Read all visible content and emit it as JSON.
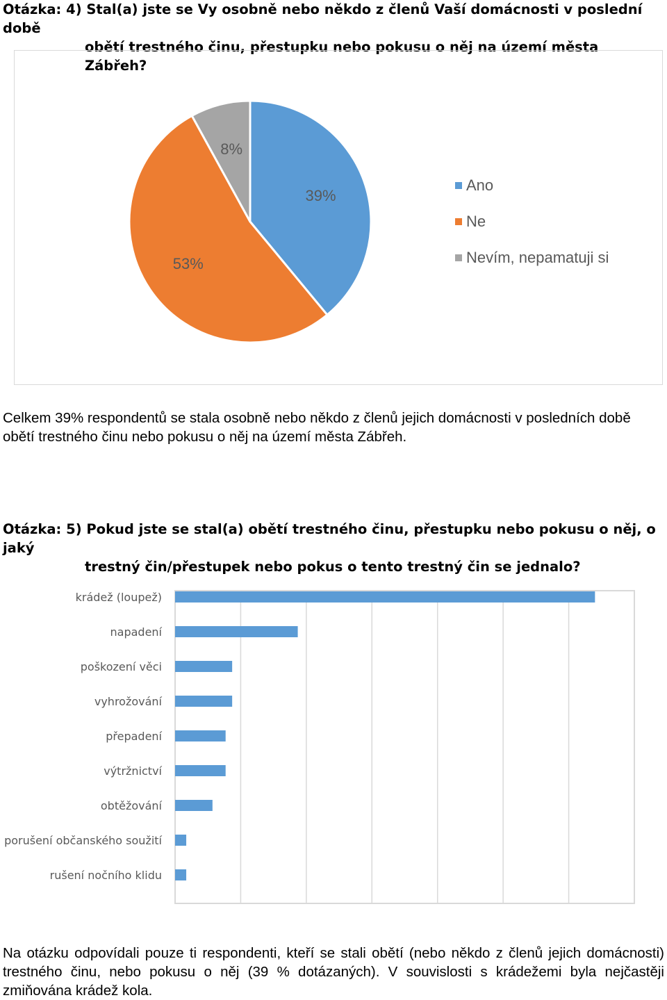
{
  "question4": {
    "line1": "Otázka: 4) Stal(a) jste se Vy osobně nebo někdo z členů Vaší domácnosti v poslední době",
    "line2": "obětí trestného činu, přestupku nebo pokusu o něj na území města Zábřeh?"
  },
  "pie_chart": {
    "chart_data": {
      "type": "pie",
      "categories": [
        "Ano",
        "Ne",
        "Nevím, nepamatuji si"
      ],
      "values": [
        39,
        53,
        8
      ],
      "labels": [
        "39%",
        "53%",
        "8%"
      ],
      "colors": [
        "#5b9bd5",
        "#ed7d31",
        "#a5a5a5"
      ],
      "legend_position": "right"
    }
  },
  "paragraph1": "Celkem 39% respondentů se stala osobně nebo někdo z členů jejich domácnosti v posledních době obětí trestného činu nebo pokusu o něj na území města Zábřeh.",
  "question5": {
    "line1": "Otázka: 5) Pokud jste se stal(a) obětí trestného činu, přestupku nebo pokusu o něj, o jaký",
    "line2": "trestný čin/přestupek nebo pokus o tento trestný čin se jednalo?"
  },
  "bar_chart": {
    "chart_data": {
      "type": "bar",
      "orientation": "horizontal",
      "categories": [
        "krádež (loupež)",
        "napadení",
        "poškození věci",
        "vyhrožování",
        "přepadení",
        "výtržnictví",
        "obtěžování",
        "porušení občanského soužití",
        "rušení nočního klidu"
      ],
      "values": [
        64,
        18.7,
        8.7,
        8.7,
        7.7,
        7.7,
        5.7,
        1.7,
        1.7
      ],
      "xlim": [
        0,
        70
      ],
      "grid": true,
      "color": "#5b9bd5"
    }
  },
  "paragraph2": "Na otázku odpovídali pouze ti respondenti, kteří se stali obětí (nebo někdo z členů jejich domácnosti) trestného činu, nebo pokusu o něj (39 % dotázaných). V souvislosti s krádežemi byla nejčastěji zmiňována krádež kola."
}
